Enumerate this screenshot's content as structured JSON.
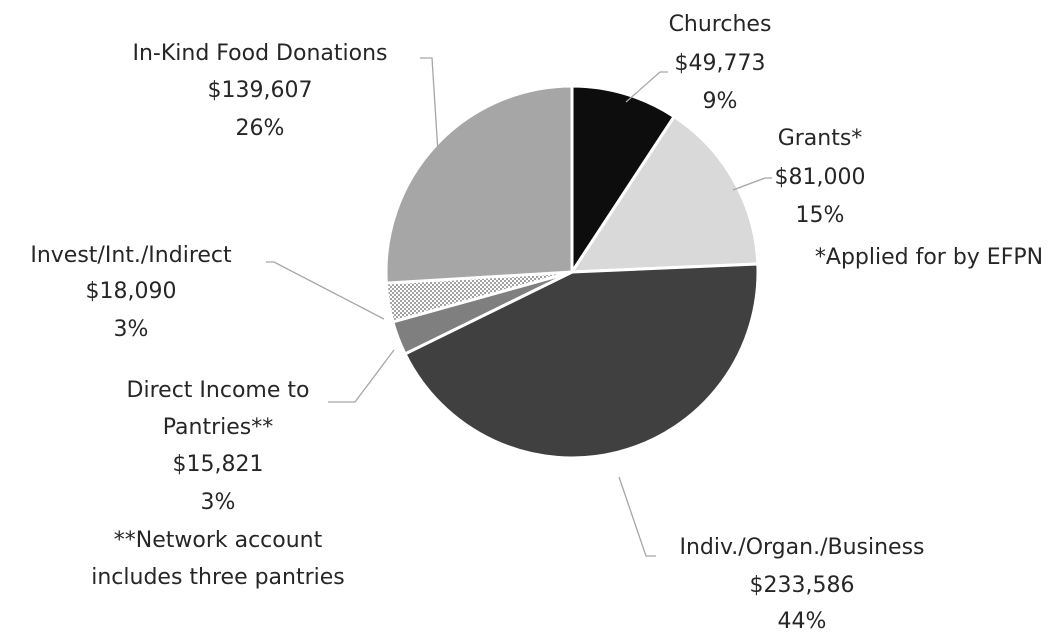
{
  "chart_data": {
    "type": "pie",
    "title": "",
    "start_angle_deg": 0,
    "direction": "clockwise",
    "slices": [
      {
        "name": "Churches",
        "value": 49773,
        "value_label": "$49,773",
        "percent_label": "9%",
        "note": "",
        "color": "#0d0d0d",
        "pattern": "solid"
      },
      {
        "name": "Grants*",
        "value": 81000,
        "value_label": "$81,000",
        "percent_label": "15%",
        "note": "*Applied for by EFPN",
        "color": "#d9d9d9",
        "pattern": "solid"
      },
      {
        "name": "Indiv./Organ./Business",
        "value": 233586,
        "value_label": "$233,586",
        "percent_label": "44%",
        "note": "",
        "color": "#404040",
        "pattern": "solid"
      },
      {
        "name": "Direct Income to Pantries**",
        "value": 15821,
        "value_label": "$15,821",
        "percent_label": "3%",
        "note": "**Network account includes three pantries",
        "color": "#7f7f7f",
        "pattern": "solid"
      },
      {
        "name": "Invest/Int./Indirect",
        "value": 18090,
        "value_label": "$18,090",
        "percent_label": "3%",
        "note": "",
        "color": "#ffffff",
        "pattern": "dots"
      },
      {
        "name": "In-Kind Food Donations",
        "value": 139607,
        "value_label": "$139,607",
        "percent_label": "26%",
        "note": "",
        "color": "#a6a6a6",
        "pattern": "solid"
      }
    ]
  },
  "labels": {
    "churches": {
      "l1": "Churches",
      "l2": "$49,773",
      "l3": "9%"
    },
    "grants": {
      "l1": "Grants*",
      "l2": "$81,000",
      "l3": "15%",
      "l4": "*Applied for by EFPN"
    },
    "indiv": {
      "l1": "Indiv./Organ./Business",
      "l2": "$233,586",
      "l3": "44%"
    },
    "direct": {
      "l1": "Direct Income to",
      "l2": "Pantries**",
      "l3": "$15,821",
      "l4": "3%",
      "l5": "**Network account",
      "l6": "includes three pantries"
    },
    "invest": {
      "l1": "Invest/Int./Indirect",
      "l2": "$18,090",
      "l3": "3%"
    },
    "inkind": {
      "l1": "In-Kind Food Donations",
      "l2": "$139,607",
      "l3": "26%"
    }
  }
}
